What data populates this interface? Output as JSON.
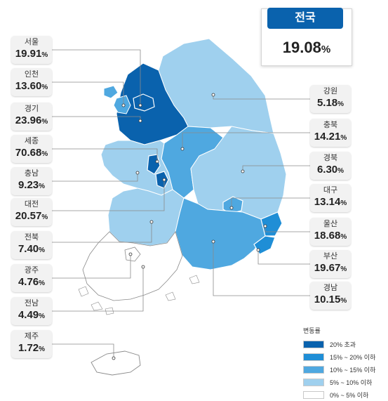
{
  "national": {
    "label": "전국",
    "value": "19.08",
    "unit": "%"
  },
  "regions": [
    {
      "name": "서울",
      "value": "19.91",
      "unit": "%"
    },
    {
      "name": "인천",
      "value": "13.60",
      "unit": "%"
    },
    {
      "name": "경기",
      "value": "23.96",
      "unit": "%"
    },
    {
      "name": "세종",
      "value": "70.68",
      "unit": "%"
    },
    {
      "name": "충남",
      "value": "9.23",
      "unit": "%"
    },
    {
      "name": "대전",
      "value": "20.57",
      "unit": "%"
    },
    {
      "name": "전북",
      "value": "7.40",
      "unit": "%"
    },
    {
      "name": "광주",
      "value": "4.76",
      "unit": "%"
    },
    {
      "name": "전남",
      "value": "4.49",
      "unit": "%"
    },
    {
      "name": "제주",
      "value": "1.72",
      "unit": "%"
    },
    {
      "name": "강원",
      "value": "5.18",
      "unit": "%"
    },
    {
      "name": "충북",
      "value": "14.21",
      "unit": "%"
    },
    {
      "name": "경북",
      "value": "6.30",
      "unit": "%"
    },
    {
      "name": "대구",
      "value": "13.14",
      "unit": "%"
    },
    {
      "name": "울산",
      "value": "18.68",
      "unit": "%"
    },
    {
      "name": "부산",
      "value": "19.67",
      "unit": "%"
    },
    {
      "name": "경남",
      "value": "10.15",
      "unit": "%"
    }
  ],
  "legend": {
    "title": "변동률",
    "items": [
      {
        "label": "20% 초과",
        "color": "#0a62ad"
      },
      {
        "label": "15% ~ 20% 이하",
        "color": "#1f8ed6"
      },
      {
        "label": "10% ~ 15% 이하",
        "color": "#4fa8e0"
      },
      {
        "label": "5% ~ 10% 이하",
        "color": "#9fd0ee"
      },
      {
        "label": "0% ~ 5% 이하",
        "color": "#ffffff"
      }
    ]
  }
}
